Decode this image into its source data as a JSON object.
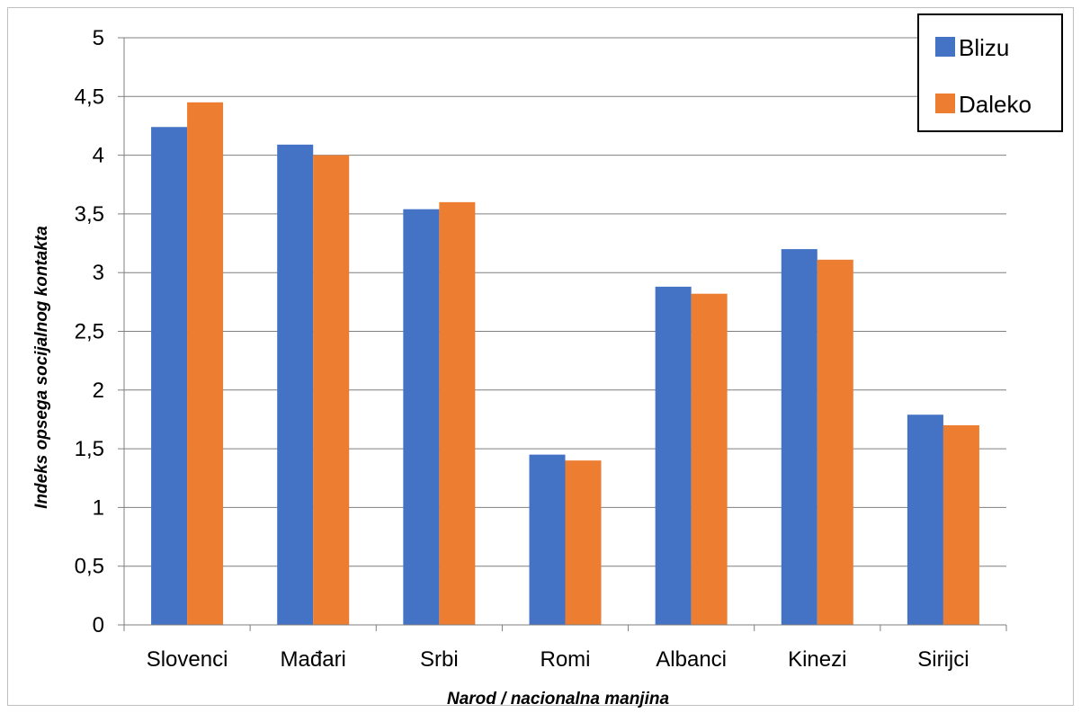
{
  "chart_data": {
    "type": "bar",
    "categories": [
      "Slovenci",
      "Mađari",
      "Srbi",
      "Romi",
      "Albanci",
      "Kinezi",
      "Sirijci"
    ],
    "series": [
      {
        "name": "Blizu",
        "color": "#4472c4",
        "values": [
          4.24,
          4.09,
          3.54,
          1.45,
          2.88,
          3.2,
          1.79
        ]
      },
      {
        "name": "Daleko",
        "color": "#ed7d31",
        "values": [
          4.45,
          4.0,
          3.6,
          1.4,
          2.82,
          3.11,
          1.7
        ]
      }
    ],
    "title": "",
    "xlabel": "Narod / nacionalna manjina",
    "ylabel": "Indeks opsega socijalnog kontakta",
    "ylim": [
      0,
      5
    ],
    "yticks": [
      0,
      0.5,
      1,
      1.5,
      2,
      2.5,
      3,
      3.5,
      4,
      4.5,
      5
    ],
    "ytick_labels": [
      "0",
      "0,5",
      "1",
      "1,5",
      "2",
      "2,5",
      "3",
      "3,5",
      "4",
      "4,5",
      "5"
    ],
    "grid": true,
    "legend_position": "top-right"
  }
}
